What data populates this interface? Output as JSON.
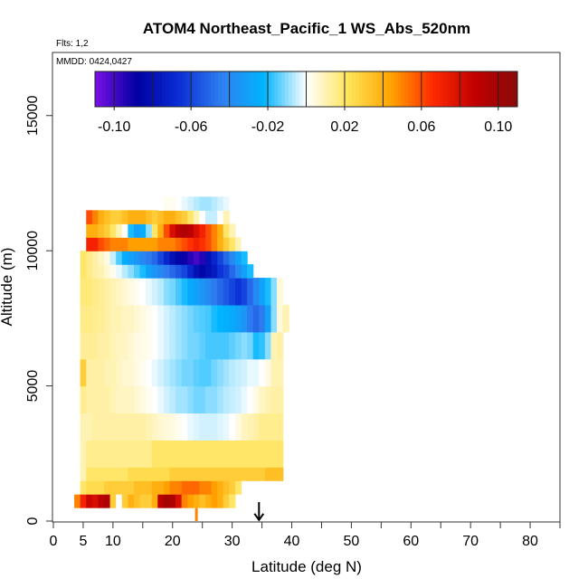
{
  "chart_data": {
    "type": "heatmap",
    "title": "ATOM4 Northeast_Pacific_1 WS_Abs_520nm",
    "flights_note": "Flts: 1,2",
    "date_note": "MMDD: 0424,0427",
    "xlabel": "Latitude (deg N)",
    "ylabel": "Altitude (m)",
    "xlim": [
      0,
      85
    ],
    "ylim": [
      0,
      17000
    ],
    "x_ticks": [
      0,
      5,
      10,
      20,
      30,
      40,
      50,
      60,
      70,
      80
    ],
    "x_tick_labels": [
      "0",
      "5",
      "10",
      "20",
      "30",
      "40",
      "50",
      "60",
      "70",
      "80"
    ],
    "x_minor_ticks": [
      15,
      25,
      35,
      45,
      55,
      65,
      75,
      85
    ],
    "y_ticks": [
      0,
      5000,
      10000,
      15000
    ],
    "y_tick_labels": [
      "0",
      "5000",
      "10000",
      "15000"
    ],
    "colorbar": {
      "min": -0.11,
      "max": 0.11,
      "tick_values": [
        -0.1,
        -0.06,
        -0.02,
        0.02,
        0.06,
        0.1
      ],
      "tick_labels": [
        "-0.10",
        "-0.06",
        "-0.02",
        "0.02",
        "0.06",
        "0.10"
      ],
      "boundaries": [
        -0.1,
        -0.08,
        -0.06,
        -0.04,
        -0.02,
        0.0,
        0.02,
        0.04,
        0.06,
        0.08,
        0.1
      ],
      "colors": [
        "#7a10e8",
        "#0000a0",
        "#0a2fd6",
        "#2f7ff0",
        "#00b4ff",
        "#ffffff",
        "#ffe45a",
        "#ffa500",
        "#ff2a00",
        "#c00000",
        "#8a0a0a"
      ]
    },
    "marker": {
      "latitude": 34.5,
      "altitude": 700,
      "type": "arrow-down"
    },
    "surface_marker": {
      "latitude": 24,
      "value": 0.05
    },
    "data_region": {
      "lat_range": [
        3.5,
        39
      ],
      "alt_range": [
        0,
        12500
      ]
    },
    "grid": {
      "lat_edges": [
        3.5,
        4.5,
        5.5,
        6.5,
        7.5,
        8.5,
        9.5,
        10.5,
        11.5,
        12.5,
        13.5,
        14.5,
        15.5,
        16.5,
        17.5,
        18.5,
        19.5,
        20.5,
        21.5,
        22.5,
        23.5,
        24.5,
        25.5,
        26.5,
        27.5,
        28.5,
        29.5,
        30.5,
        31.5,
        32.5,
        33.5,
        34.5,
        35.5,
        36.5,
        37.5,
        38.5
      ],
      "rows": [
        {
          "alt": [
            500,
            1000
          ],
          "values": [
            0.05,
            0.07,
            0.085,
            0.08,
            0.09,
            0.095,
            0.03,
            0.0,
            0.03,
            0.04,
            0.035,
            0.03,
            0.03,
            0.04,
            0.09,
            0.1,
            0.095,
            0.08,
            0.05,
            0.045,
            0.04,
            0.035,
            0.04,
            0.045,
            0.04,
            0.03,
            0.02
          ]
        },
        {
          "alt": [
            1000,
            1500
          ],
          "values": [
            0.0,
            0.02,
            0.025,
            0.025,
            0.025,
            0.03,
            0.03,
            0.03,
            0.03,
            0.03,
            0.035,
            0.035,
            0.035,
            0.04,
            0.04,
            0.045,
            0.05,
            0.05,
            0.055,
            0.055,
            0.055,
            0.05,
            0.05,
            0.045,
            0.04,
            0.035,
            0.03,
            0.02
          ]
        },
        {
          "alt": [
            1500,
            2000
          ],
          "values": [
            0.01,
            0.02,
            0.02,
            0.02,
            0.02,
            0.02,
            0.02,
            0.02,
            0.025,
            0.025,
            0.025,
            0.025,
            0.025,
            0.025,
            0.025,
            0.03,
            0.03,
            0.03,
            0.03,
            0.03,
            0.03,
            0.03,
            0.03,
            0.03,
            0.03,
            0.03,
            0.03,
            0.03,
            0.03,
            0.03,
            0.03,
            0.035,
            0.035,
            0.035
          ]
        },
        {
          "alt": [
            2000,
            3000
          ],
          "values": [
            0.01,
            0.015,
            0.015,
            0.015,
            0.015,
            0.015,
            0.015,
            0.015,
            0.015,
            0.015,
            0.015,
            0.015,
            0.02,
            0.02,
            0.02,
            0.02,
            0.02,
            0.02,
            0.02,
            0.02,
            0.02,
            0.02,
            0.02,
            0.02,
            0.02,
            0.02,
            0.02,
            0.02,
            0.02,
            0.02,
            0.02,
            0.02,
            0.02,
            0.02
          ]
        },
        {
          "alt": [
            3000,
            4000
          ],
          "values": [
            0.01,
            0.01,
            0.012,
            0.012,
            0.012,
            0.012,
            0.012,
            0.012,
            0.012,
            0.012,
            0.012,
            0.01,
            0.008,
            0.006,
            0.005,
            0.004,
            0.002,
            0.0,
            -0.002,
            -0.003,
            -0.004,
            -0.004,
            -0.004,
            -0.003,
            -0.002,
            0.0,
            0.004,
            0.008,
            0.01,
            0.012,
            0.015,
            0.015,
            0.015,
            0.015
          ]
        },
        {
          "alt": [
            4000,
            5000
          ],
          "values": [
            0.015,
            0.012,
            0.012,
            0.012,
            0.012,
            0.01,
            0.008,
            0.008,
            0.008,
            0.006,
            0.004,
            0.002,
            0.0,
            -0.002,
            -0.004,
            -0.006,
            -0.008,
            -0.008,
            -0.01,
            -0.012,
            -0.012,
            -0.01,
            -0.01,
            -0.008,
            -0.006,
            -0.005,
            -0.004,
            -0.002,
            0.0,
            0.004,
            0.008,
            0.01,
            0.012,
            0.012
          ]
        },
        {
          "alt": [
            5000,
            6000
          ],
          "values": [
            0.03,
            0.012,
            0.012,
            0.012,
            0.01,
            0.01,
            0.008,
            0.006,
            0.006,
            0.004,
            0.002,
            0.0,
            -0.002,
            -0.004,
            -0.006,
            -0.008,
            -0.01,
            -0.012,
            -0.012,
            -0.014,
            -0.015,
            -0.015,
            -0.012,
            -0.01,
            -0.008,
            -0.006,
            -0.005,
            -0.004,
            -0.002,
            -0.002,
            0.0,
            0.004,
            0.01,
            0.01
          ]
        },
        {
          "alt": [
            6000,
            7000
          ],
          "values": [
            0.014,
            0.014,
            0.014,
            0.012,
            0.012,
            0.01,
            0.008,
            0.008,
            0.006,
            0.004,
            0.003,
            0.002,
            0.0,
            -0.002,
            -0.004,
            -0.006,
            -0.008,
            -0.01,
            -0.012,
            -0.012,
            -0.014,
            -0.016,
            -0.016,
            -0.016,
            -0.016,
            -0.014,
            -0.012,
            -0.01,
            -0.012,
            -0.02,
            -0.018,
            -0.01,
            0.01,
            0.012
          ]
        },
        {
          "alt": [
            7000,
            8000
          ],
          "values": [
            0.016,
            0.016,
            0.015,
            0.014,
            0.012,
            0.01,
            0.01,
            0.008,
            0.008,
            0.006,
            0.004,
            0.002,
            0.0,
            -0.002,
            -0.004,
            -0.006,
            -0.008,
            -0.01,
            -0.012,
            -0.014,
            -0.015,
            -0.016,
            -0.02,
            -0.022,
            -0.024,
            -0.026,
            -0.03,
            -0.035,
            -0.045,
            -0.05,
            -0.045,
            -0.03,
            -0.01,
            0.005,
            0.01
          ]
        },
        {
          "alt": [
            8000,
            9000
          ],
          "values": [
            0.018,
            0.018,
            0.016,
            0.014,
            0.012,
            0.01,
            0.008,
            0.006,
            0.004,
            0.002,
            0.0,
            -0.002,
            -0.004,
            -0.006,
            -0.01,
            -0.012,
            -0.016,
            -0.02,
            -0.026,
            -0.03,
            -0.035,
            -0.04,
            -0.045,
            -0.05,
            -0.055,
            -0.06,
            -0.065,
            -0.06,
            -0.05,
            -0.04,
            -0.03,
            -0.02,
            -0.01,
            0.005
          ]
        },
        {
          "alt": [
            9000,
            9500
          ],
          "values": [
            0.02,
            0.016,
            0.012,
            0.01,
            0.006,
            0.002,
            -0.002,
            -0.006,
            -0.01,
            -0.015,
            -0.02,
            -0.03,
            -0.035,
            -0.04,
            -0.045,
            -0.05,
            -0.055,
            -0.06,
            -0.07,
            -0.08,
            -0.085,
            -0.08,
            -0.075,
            -0.065,
            -0.06,
            -0.05,
            -0.04,
            -0.03,
            -0.02
          ]
        },
        {
          "alt": [
            9500,
            10000
          ],
          "values": [
            0.02,
            0.016,
            0.012,
            0.008,
            0.004,
            -0.005,
            -0.015,
            -0.025,
            -0.03,
            -0.035,
            -0.04,
            -0.045,
            -0.05,
            -0.06,
            -0.07,
            -0.08,
            -0.085,
            -0.09,
            -0.095,
            -0.1,
            -0.095,
            -0.08,
            -0.07,
            -0.06,
            -0.05,
            -0.04,
            -0.03,
            -0.02
          ]
        },
        {
          "alt": [
            10000,
            10500
          ],
          "values": [
            0.07,
            0.07,
            0.06,
            0.055,
            0.05,
            0.05,
            0.05,
            0.045,
            0.045,
            0.045,
            0.045,
            0.045,
            0.05,
            0.05,
            0.05,
            0.055,
            0.06,
            0.065,
            0.07,
            0.065,
            0.06,
            0.05,
            0.04,
            0.03,
            0.02,
            0.01,
            0.0,
            0.0
          ]
        },
        {
          "alt": [
            10500,
            11000
          ],
          "values": [
            0.04,
            0.04,
            0.035,
            0.03,
            0.02,
            0.01,
            0.0,
            -0.02,
            -0.03,
            -0.025,
            -0.01,
            0.02,
            0.04,
            0.06,
            0.08,
            0.09,
            0.095,
            0.09,
            0.08,
            0.07,
            0.06,
            0.05,
            0.04,
            0.02,
            0.01
          ]
        },
        {
          "alt": [
            11000,
            11500
          ],
          "values": [
            0.06,
            0.05,
            0.04,
            0.035,
            0.03,
            0.03,
            0.035,
            0.04,
            0.04,
            0.04,
            0.035,
            0.03,
            0.035,
            0.04,
            0.04,
            0.035,
            0.03,
            0.02,
            0.01,
            0.0,
            -0.005,
            -0.005,
            0.0,
            0.01
          ]
        },
        {
          "alt": [
            11500,
            12000
          ],
          "values": [
            0.0,
            0.002,
            0.002,
            0.0,
            -0.002,
            -0.004,
            -0.006,
            -0.008,
            -0.008,
            -0.006,
            -0.004,
            -0.002,
            0.0
          ]
        },
        {
          "alt": [
            12000,
            12500
          ],
          "values": [
            0.0,
            0.0
          ]
        }
      ],
      "row_start_lat": [
        3.5,
        3.5,
        4.5,
        4.5,
        4.5,
        4.5,
        4.5,
        4.5,
        4.5,
        4.5,
        4.5,
        4.5,
        5.5,
        5.5,
        5.5,
        17.5,
        29.5
      ]
    }
  }
}
